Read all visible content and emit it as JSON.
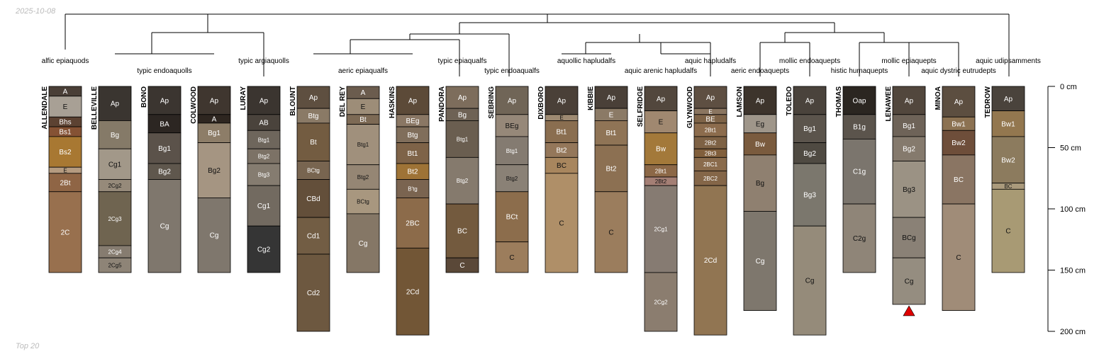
{
  "corner": {
    "date": "2025-10-08",
    "caption": "Top 20"
  },
  "axis": {
    "max_depth_cm": 200,
    "ticks": [
      {
        "value": 0,
        "label": "0 cm"
      },
      {
        "value": 50,
        "label": "50 cm"
      },
      {
        "value": 100,
        "label": "100 cm"
      },
      {
        "value": 150,
        "label": "150 cm"
      },
      {
        "value": 200,
        "label": "200 cm"
      }
    ]
  },
  "taxa": [
    {
      "label": "alfic epiaquods",
      "row": 1
    },
    {
      "label": "typic endoaquolls",
      "row": 2
    },
    {
      "label": "typic argiaquolls",
      "row": 1
    },
    {
      "label": "aeric epiaqualfs",
      "row": 2
    },
    {
      "label": "typic epiaqualfs",
      "row": 1
    },
    {
      "label": "typic endoaqualfs",
      "row": 2
    },
    {
      "label": "aquollic hapludalfs",
      "row": 1
    },
    {
      "label": "aquic arenic hapludalfs",
      "row": 2
    },
    {
      "label": "aquic hapludalfs",
      "row": 1
    },
    {
      "label": "aeric endoaquepts",
      "row": 2
    },
    {
      "label": "mollic endoaquepts",
      "row": 1
    },
    {
      "label": "histic humaquepts",
      "row": 2
    },
    {
      "label": "mollic epiaquepts",
      "row": 1
    },
    {
      "label": "aquic dystric eutrudepts",
      "row": 2
    },
    {
      "label": "aquic udipsamments",
      "row": 1
    }
  ],
  "profiles": [
    {
      "name": "ALLENDALE",
      "horizons": [
        {
          "name": "A",
          "top": 0,
          "bottom": 8,
          "color": "#4a3f37"
        },
        {
          "name": "E",
          "top": 8,
          "bottom": 25,
          "color": "#a8a095"
        },
        {
          "name": "Bhs",
          "top": 25,
          "bottom": 33,
          "color": "#5c4232"
        },
        {
          "name": "Bs1",
          "top": 33,
          "bottom": 41,
          "color": "#855234"
        },
        {
          "name": "Bs2",
          "top": 41,
          "bottom": 66,
          "color": "#a87832"
        },
        {
          "name": "E",
          "top": 66,
          "bottom": 71,
          "color": "#b59b80"
        },
        {
          "name": "2Bt",
          "top": 71,
          "bottom": 86,
          "color": "#8f6545"
        },
        {
          "name": "2C",
          "top": 86,
          "bottom": 152,
          "color": "#98704e"
        }
      ]
    },
    {
      "name": "BELLEVILLE",
      "horizons": [
        {
          "name": "Ap",
          "top": 0,
          "bottom": 28,
          "color": "#3a3530"
        },
        {
          "name": "Bg",
          "top": 28,
          "bottom": 51,
          "color": "#857a68"
        },
        {
          "name": "Cg1",
          "top": 51,
          "bottom": 76,
          "color": "#a29889"
        },
        {
          "name": "2Cg2",
          "top": 76,
          "bottom": 86,
          "color": "#968a7a"
        },
        {
          "name": "2Cg3",
          "top": 86,
          "bottom": 130,
          "color": "#6f6450"
        },
        {
          "name": "2Cg4",
          "top": 130,
          "bottom": 140,
          "color": "#867c70"
        },
        {
          "name": "2Cg5",
          "top": 140,
          "bottom": 152,
          "color": "#8e8477"
        }
      ]
    },
    {
      "name": "BONO",
      "horizons": [
        {
          "name": "Ap",
          "top": 0,
          "bottom": 23,
          "color": "#3b3530"
        },
        {
          "name": "BA",
          "top": 23,
          "bottom": 38,
          "color": "#2c2622"
        },
        {
          "name": "Bg1",
          "top": 38,
          "bottom": 63,
          "color": "#5b524a"
        },
        {
          "name": "Bg2",
          "top": 63,
          "bottom": 76,
          "color": "#5f574d"
        },
        {
          "name": "Cg",
          "top": 76,
          "bottom": 152,
          "color": "#7f776d"
        }
      ]
    },
    {
      "name": "COLWOOD",
      "horizons": [
        {
          "name": "Ap",
          "top": 0,
          "bottom": 23,
          "color": "#3f362f"
        },
        {
          "name": "A",
          "top": 23,
          "bottom": 30,
          "color": "#2e2620"
        },
        {
          "name": "Bg1",
          "top": 30,
          "bottom": 46,
          "color": "#8d7d68"
        },
        {
          "name": "Bg2",
          "top": 46,
          "bottom": 91,
          "color": "#a59582"
        },
        {
          "name": "Cg",
          "top": 91,
          "bottom": 152,
          "color": "#7f776d"
        }
      ]
    },
    {
      "name": "LURAY",
      "horizons": [
        {
          "name": "Ap",
          "top": 0,
          "bottom": 23,
          "color": "#3b3530"
        },
        {
          "name": "AB",
          "top": 23,
          "bottom": 36,
          "color": "#4a433c"
        },
        {
          "name": "Btg1",
          "top": 36,
          "bottom": 51,
          "color": "#6e665c"
        },
        {
          "name": "Btg2",
          "top": 51,
          "bottom": 63,
          "color": "#7c7266"
        },
        {
          "name": "Btg3",
          "top": 63,
          "bottom": 81,
          "color": "#857c70"
        },
        {
          "name": "Cg1",
          "top": 81,
          "bottom": 114,
          "color": "#726a60"
        },
        {
          "name": "Cg2",
          "top": 114,
          "bottom": 152,
          "color": "#353535"
        }
      ]
    },
    {
      "name": "BLOUNT",
      "horizons": [
        {
          "name": "Ap",
          "top": 0,
          "bottom": 18,
          "color": "#5e4f40"
        },
        {
          "name": "Btg",
          "top": 18,
          "bottom": 30,
          "color": "#8a7a66"
        },
        {
          "name": "Bt",
          "top": 30,
          "bottom": 61,
          "color": "#735c41"
        },
        {
          "name": "BCtg",
          "top": 61,
          "bottom": 76,
          "color": "#786550"
        },
        {
          "name": "CBd",
          "top": 76,
          "bottom": 107,
          "color": "#634f3a"
        },
        {
          "name": "Cd1",
          "top": 107,
          "bottom": 137,
          "color": "#725d44"
        },
        {
          "name": "Cd2",
          "top": 137,
          "bottom": 200,
          "color": "#6d5840"
        }
      ]
    },
    {
      "name": "DEL REY",
      "horizons": [
        {
          "name": "A",
          "top": 0,
          "bottom": 10,
          "color": "#6b5c4e"
        },
        {
          "name": "E",
          "top": 10,
          "bottom": 23,
          "color": "#9d8d78"
        },
        {
          "name": "Bt",
          "top": 23,
          "bottom": 31,
          "color": "#7d6a55"
        },
        {
          "name": "Btg1",
          "top": 31,
          "bottom": 64,
          "color": "#a0907c"
        },
        {
          "name": "Btg2",
          "top": 64,
          "bottom": 84,
          "color": "#958674"
        },
        {
          "name": "BCtg",
          "top": 84,
          "bottom": 104,
          "color": "#a8977f"
        },
        {
          "name": "Cg",
          "top": 104,
          "bottom": 152,
          "color": "#857766"
        }
      ]
    },
    {
      "name": "HASKINS",
      "horizons": [
        {
          "name": "Ap",
          "top": 0,
          "bottom": 23,
          "color": "#5c4a38"
        },
        {
          "name": "BEg",
          "top": 23,
          "bottom": 33,
          "color": "#8a7764"
        },
        {
          "name": "Btg",
          "top": 33,
          "bottom": 46,
          "color": "#806e5b"
        },
        {
          "name": "Bt1",
          "top": 46,
          "bottom": 63,
          "color": "#7e6348"
        },
        {
          "name": "Bt2",
          "top": 63,
          "bottom": 76,
          "color": "#9e7336"
        },
        {
          "name": "B'tg",
          "top": 76,
          "bottom": 91,
          "color": "#7a6450"
        },
        {
          "name": "2BC",
          "top": 91,
          "bottom": 132,
          "color": "#8c6b4a"
        },
        {
          "name": "2Cd",
          "top": 132,
          "bottom": 203,
          "color": "#725636"
        }
      ]
    },
    {
      "name": "PANDORA",
      "horizons": [
        {
          "name": "Ap",
          "top": 0,
          "bottom": 18,
          "color": "#7d6d5c"
        },
        {
          "name": "Bg",
          "top": 18,
          "bottom": 28,
          "color": "#6e6255"
        },
        {
          "name": "Btg1",
          "top": 28,
          "bottom": 58,
          "color": "#6a5e50"
        },
        {
          "name": "Btg2",
          "top": 58,
          "bottom": 96,
          "color": "#857a6d"
        },
        {
          "name": "BC",
          "top": 96,
          "bottom": 140,
          "color": "#735a3e"
        },
        {
          "name": "C",
          "top": 140,
          "bottom": 152,
          "color": "#5a4838"
        }
      ]
    },
    {
      "name": "SEBRING",
      "horizons": [
        {
          "name": "Ap",
          "top": 0,
          "bottom": 23,
          "color": "#706557"
        },
        {
          "name": "BEg",
          "top": 23,
          "bottom": 41,
          "color": "#968879"
        },
        {
          "name": "Btg1",
          "top": 41,
          "bottom": 64,
          "color": "#847b71"
        },
        {
          "name": "Btg2",
          "top": 64,
          "bottom": 86,
          "color": "#8a8176"
        },
        {
          "name": "BCt",
          "top": 86,
          "bottom": 127,
          "color": "#8c6d4c"
        },
        {
          "name": "C",
          "top": 127,
          "bottom": 152,
          "color": "#9c7d5c"
        }
      ]
    },
    {
      "name": "DIXBORO",
      "horizons": [
        {
          "name": "Ap",
          "top": 0,
          "bottom": 23,
          "color": "#4a4038"
        },
        {
          "name": "E",
          "top": 23,
          "bottom": 28,
          "color": "#9e8a72"
        },
        {
          "name": "Bt1",
          "top": 28,
          "bottom": 46,
          "color": "#8a6e50"
        },
        {
          "name": "Bt2",
          "top": 46,
          "bottom": 58,
          "color": "#94775a"
        },
        {
          "name": "BC",
          "top": 58,
          "bottom": 71,
          "color": "#a8865e"
        },
        {
          "name": "C",
          "top": 71,
          "bottom": 152,
          "color": "#af8f68"
        }
      ]
    },
    {
      "name": "KIBBIE",
      "horizons": [
        {
          "name": "Ap",
          "top": 0,
          "bottom": 18,
          "color": "#4a4038"
        },
        {
          "name": "E",
          "top": 18,
          "bottom": 28,
          "color": "#8b7a66"
        },
        {
          "name": "Bt1",
          "top": 28,
          "bottom": 48,
          "color": "#8f7456"
        },
        {
          "name": "Bt2",
          "top": 48,
          "bottom": 86,
          "color": "#8c7052"
        },
        {
          "name": "C",
          "top": 86,
          "bottom": 152,
          "color": "#9b7d5d"
        }
      ]
    },
    {
      "name": "SELFRIDGE",
      "horizons": [
        {
          "name": "Ap",
          "top": 0,
          "bottom": 20,
          "color": "#52473d"
        },
        {
          "name": "E",
          "top": 20,
          "bottom": 38,
          "color": "#a08870"
        },
        {
          "name": "Bw",
          "top": 38,
          "bottom": 64,
          "color": "#a3793a"
        },
        {
          "name": "2Bt1",
          "top": 64,
          "bottom": 74,
          "color": "#8c6847"
        },
        {
          "name": "2Bt2",
          "top": 74,
          "bottom": 81,
          "color": "#a47f75"
        },
        {
          "name": "2Cg1",
          "top": 81,
          "bottom": 152,
          "color": "#867b72"
        },
        {
          "name": "2Cg2",
          "top": 152,
          "bottom": 200,
          "color": "#8b7d6f"
        }
      ]
    },
    {
      "name": "GLYNWOOD",
      "horizons": [
        {
          "name": "Ap",
          "top": 0,
          "bottom": 18,
          "color": "#5e4f42"
        },
        {
          "name": "E",
          "top": 18,
          "bottom": 23,
          "color": "#8a7560"
        },
        {
          "name": "BE",
          "top": 23,
          "bottom": 30,
          "color": "#7e6347"
        },
        {
          "name": "2Bt1",
          "top": 30,
          "bottom": 41,
          "color": "#8c6c4d"
        },
        {
          "name": "2Bt2",
          "top": 41,
          "bottom": 51,
          "color": "#7e6245"
        },
        {
          "name": "2Bt3",
          "top": 51,
          "bottom": 58,
          "color": "#815f3c"
        },
        {
          "name": "2BC1",
          "top": 58,
          "bottom": 69,
          "color": "#8a6b4c"
        },
        {
          "name": "2BC2",
          "top": 69,
          "bottom": 81,
          "color": "#846648"
        },
        {
          "name": "2Cd",
          "top": 81,
          "bottom": 203,
          "color": "#917552"
        }
      ]
    },
    {
      "name": "LAMSON",
      "horizons": [
        {
          "name": "Ap",
          "top": 0,
          "bottom": 23,
          "color": "#3d342c"
        },
        {
          "name": "Eg",
          "top": 23,
          "bottom": 38,
          "color": "#9f968a"
        },
        {
          "name": "Bw",
          "top": 38,
          "bottom": 56,
          "color": "#7a5b3e"
        },
        {
          "name": "Bg",
          "top": 56,
          "bottom": 102,
          "color": "#8f8070"
        },
        {
          "name": "Cg",
          "top": 102,
          "bottom": 183,
          "color": "#7e776d"
        }
      ]
    },
    {
      "name": "TOLEDO",
      "horizons": [
        {
          "name": "Ap",
          "top": 0,
          "bottom": 23,
          "color": "#4a433c"
        },
        {
          "name": "Bg1",
          "top": 23,
          "bottom": 46,
          "color": "#5b544c"
        },
        {
          "name": "Bg2",
          "top": 46,
          "bottom": 63,
          "color": "#4f4a42"
        },
        {
          "name": "Bg3",
          "top": 63,
          "bottom": 114,
          "color": "#7b776d"
        },
        {
          "name": "Cg",
          "top": 114,
          "bottom": 203,
          "color": "#958b7a"
        }
      ]
    },
    {
      "name": "THOMAS",
      "horizons": [
        {
          "name": "Oap",
          "top": 0,
          "bottom": 23,
          "color": "#2b2621"
        },
        {
          "name": "B1g",
          "top": 23,
          "bottom": 43,
          "color": "#5b544c"
        },
        {
          "name": "C1g",
          "top": 43,
          "bottom": 96,
          "color": "#7b756d"
        },
        {
          "name": "C2g",
          "top": 96,
          "bottom": 152,
          "color": "#8f8578"
        }
      ]
    },
    {
      "name": "LENAWEE",
      "truncated": true,
      "horizons": [
        {
          "name": "Ap",
          "top": 0,
          "bottom": 23,
          "color": "#52473d"
        },
        {
          "name": "Bg1",
          "top": 23,
          "bottom": 41,
          "color": "#6e6358"
        },
        {
          "name": "Bg2",
          "top": 41,
          "bottom": 61,
          "color": "#857a6d"
        },
        {
          "name": "Bg3",
          "top": 61,
          "bottom": 107,
          "color": "#9b9284"
        },
        {
          "name": "BCg",
          "top": 107,
          "bottom": 140,
          "color": "#8a8176"
        },
        {
          "name": "Cg",
          "top": 140,
          "bottom": 178,
          "color": "#958d80"
        }
      ]
    },
    {
      "name": "MINOA",
      "horizons": [
        {
          "name": "Ap",
          "top": 0,
          "bottom": 25,
          "color": "#5c4e40"
        },
        {
          "name": "Bw1",
          "top": 25,
          "bottom": 36,
          "color": "#8c7252"
        },
        {
          "name": "Bw2",
          "top": 36,
          "bottom": 56,
          "color": "#6e4e3a"
        },
        {
          "name": "BC",
          "top": 56,
          "bottom": 96,
          "color": "#8a7563"
        },
        {
          "name": "C",
          "top": 96,
          "bottom": 183,
          "color": "#a08c78"
        }
      ]
    },
    {
      "name": "TEDROW",
      "horizons": [
        {
          "name": "Ap",
          "top": 0,
          "bottom": 20,
          "color": "#4a433c"
        },
        {
          "name": "Bw1",
          "top": 20,
          "bottom": 41,
          "color": "#93774f"
        },
        {
          "name": "Bw2",
          "top": 41,
          "bottom": 79,
          "color": "#8c7b5e"
        },
        {
          "name": "BC",
          "top": 79,
          "bottom": 84,
          "color": "#aa9a7c"
        },
        {
          "name": "C",
          "top": 84,
          "bottom": 152,
          "color": "#a89a74"
        }
      ]
    }
  ]
}
